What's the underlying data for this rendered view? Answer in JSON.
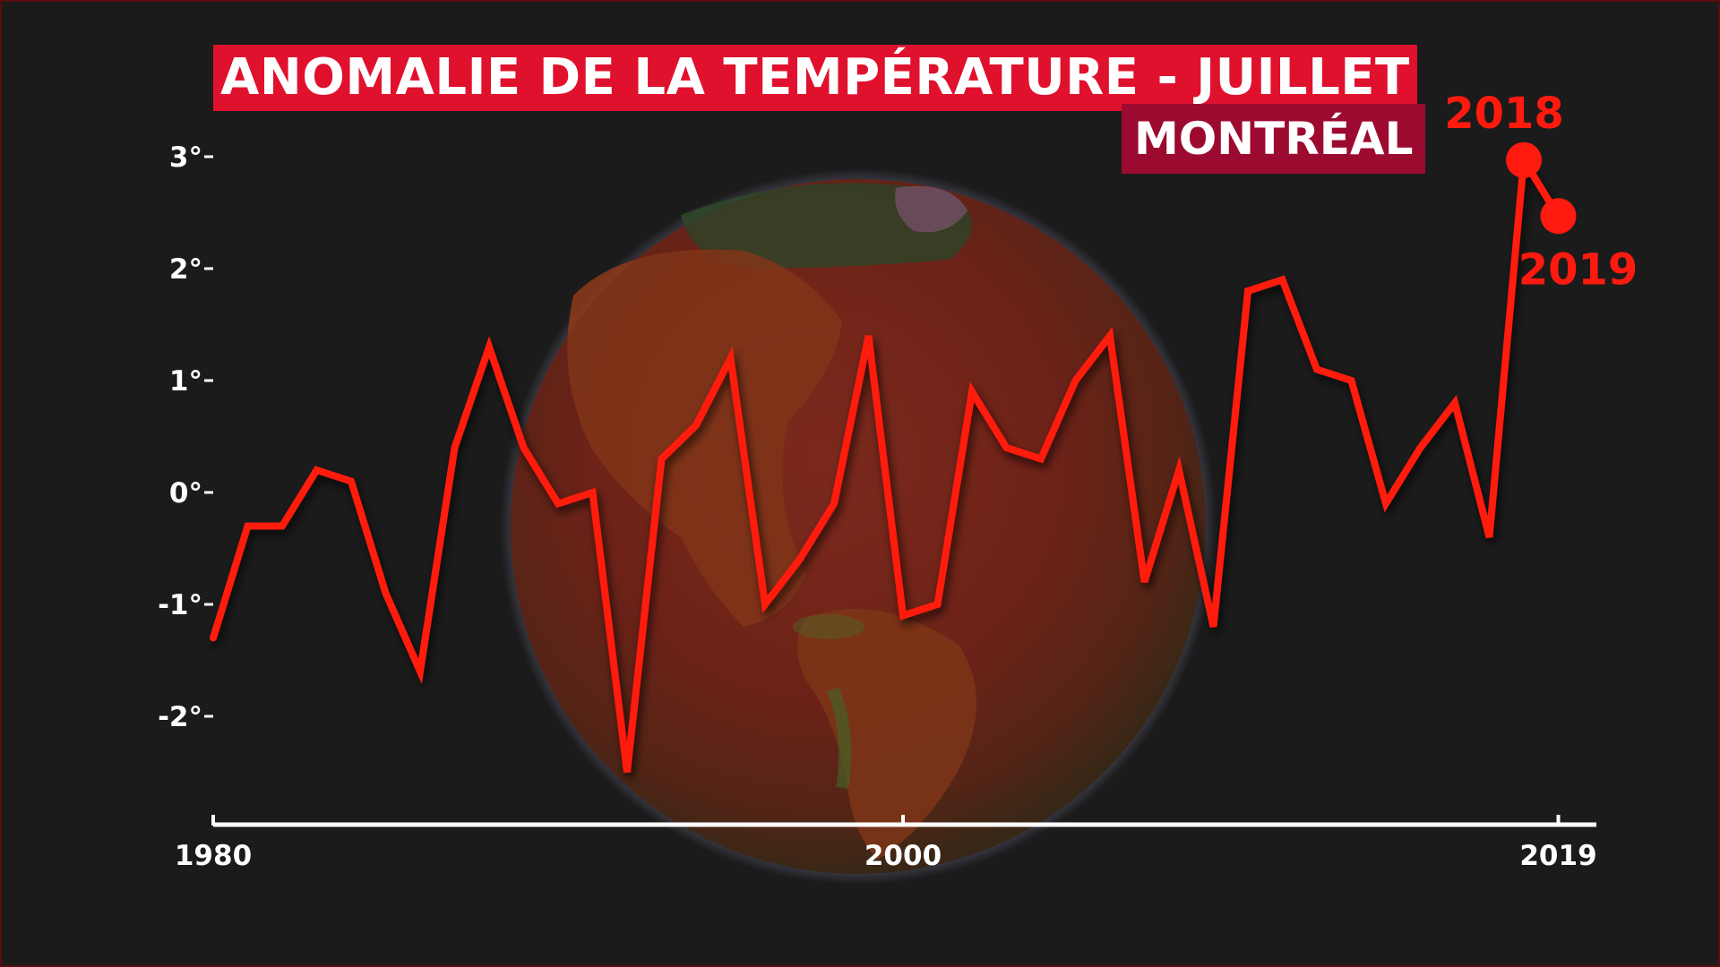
{
  "title": "ANOMALIE DE LA TEMPÉRATURE - JUILLET",
  "subtitle": "MONTRÉAL",
  "colors": {
    "background": "#1b1b1b",
    "line": "#ff1a10",
    "title_bg": "#e0112d",
    "subtitle_bg": "#9c0a2f",
    "axis_y": "#d4141a",
    "axis_x": "#ffffff",
    "highlight": "#ff1a10"
  },
  "background_image": "earth-globe-temperature",
  "chart_data": {
    "type": "line",
    "title": "ANOMALIE DE LA TEMPÉRATURE - JUILLET",
    "subtitle": "MONTRÉAL",
    "xlabel": "",
    "ylabel": "",
    "xlim": [
      1980,
      2020
    ],
    "ylim": [
      -3,
      3.2
    ],
    "grid": false,
    "x_ticks": [
      {
        "value": 1980,
        "label": "1980"
      },
      {
        "value": 2000,
        "label": "2000"
      },
      {
        "value": 2019,
        "label": "2019"
      }
    ],
    "y_ticks": [
      {
        "value": 3,
        "label": "3°"
      },
      {
        "value": 2,
        "label": "2°"
      },
      {
        "value": 1,
        "label": "1°"
      },
      {
        "value": 0,
        "label": "0°"
      },
      {
        "value": -1,
        "label": "-1°"
      },
      {
        "value": -2,
        "label": "-2°"
      }
    ],
    "series": [
      {
        "x": [
          1980,
          1981,
          1982,
          1983,
          1984,
          1985,
          1986,
          1987,
          1988,
          1989,
          1990,
          1991,
          1992,
          1993,
          1994,
          1995,
          1996,
          1997,
          1998,
          1999,
          2000,
          2001,
          2002,
          2003,
          2004,
          2005,
          2006,
          2007,
          2008,
          2009,
          2010,
          2011,
          2012,
          2013,
          2014,
          2015,
          2016,
          2017,
          2018,
          2019
        ],
        "values": [
          -1.3,
          -0.3,
          -0.3,
          0.2,
          0.1,
          -0.9,
          -1.6,
          0.4,
          1.3,
          0.4,
          -0.1,
          0.0,
          -2.5,
          0.3,
          0.6,
          1.2,
          -1.0,
          -0.6,
          -0.1,
          1.4,
          -1.1,
          -1.0,
          0.9,
          0.4,
          0.3,
          1.0,
          1.4,
          -0.8,
          0.2,
          -1.2,
          1.8,
          1.9,
          1.1,
          1.0,
          -0.1,
          0.4,
          0.8,
          -0.4,
          2.97,
          2.47
        ]
      }
    ],
    "highlighted_points": [
      {
        "x": 2018,
        "y": 2.97,
        "label": "2018"
      },
      {
        "x": 2019,
        "y": 2.47,
        "label": "2019"
      }
    ]
  }
}
